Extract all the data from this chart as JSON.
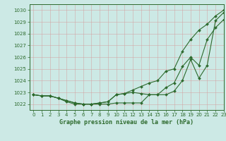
{
  "title": "Graphe pression niveau de la mer (hPa)",
  "xlim": [
    -0.5,
    23
  ],
  "ylim": [
    1021.5,
    1030.5
  ],
  "yticks": [
    1022,
    1023,
    1024,
    1025,
    1026,
    1027,
    1028,
    1029,
    1030
  ],
  "xticks": [
    0,
    1,
    2,
    3,
    4,
    5,
    6,
    7,
    8,
    9,
    10,
    11,
    12,
    13,
    14,
    15,
    16,
    17,
    18,
    19,
    20,
    21,
    22,
    23
  ],
  "bg_color": "#cce9e5",
  "grid_color": "#b8d8d4",
  "line_color": "#2d6a2d",
  "series1": [
    1022.8,
    1022.7,
    1022.7,
    1022.5,
    1022.2,
    1022.0,
    1022.0,
    1022.0,
    1022.0,
    1022.0,
    1022.1,
    1022.1,
    1022.1,
    1022.1,
    1022.8,
    1022.8,
    1022.8,
    1023.1,
    1024.0,
    1025.8,
    1024.2,
    1025.3,
    1029.1,
    1029.8
  ],
  "series2": [
    1022.8,
    1022.7,
    1022.7,
    1022.5,
    1022.3,
    1022.1,
    1022.0,
    1022.0,
    1022.1,
    1022.2,
    1022.8,
    1022.9,
    1023.0,
    1022.9,
    1022.8,
    1022.8,
    1023.4,
    1023.8,
    1025.2,
    1026.0,
    1025.3,
    1027.5,
    1028.5,
    1029.2
  ],
  "series3": [
    1022.8,
    1022.7,
    1022.7,
    1022.5,
    1022.3,
    1022.1,
    1022.0,
    1022.0,
    1022.1,
    1022.2,
    1022.8,
    1022.9,
    1023.2,
    1023.5,
    1023.8,
    1024.0,
    1024.8,
    1025.0,
    1026.5,
    1027.5,
    1028.3,
    1028.8,
    1029.5,
    1030.0
  ],
  "tick_fontsize": 5,
  "title_fontsize": 6,
  "linewidth": 0.8,
  "markersize": 2.0
}
